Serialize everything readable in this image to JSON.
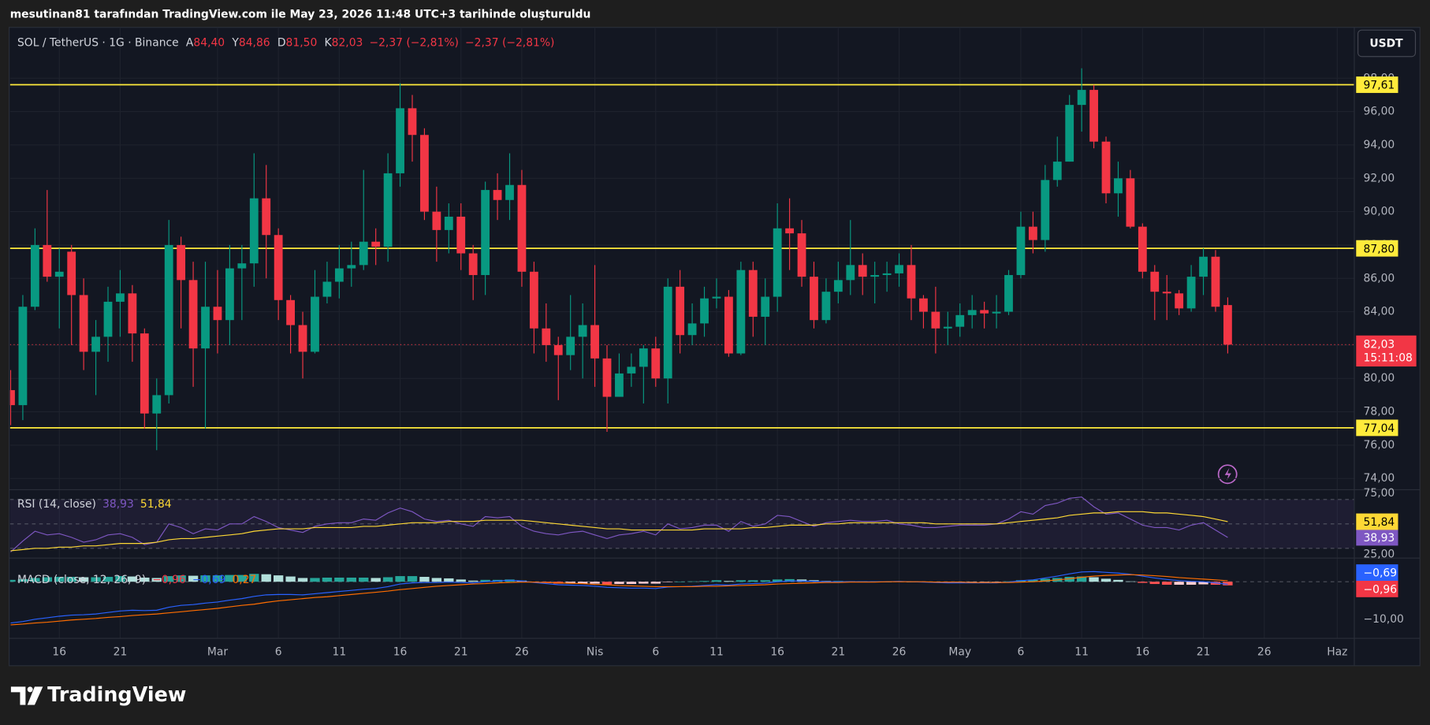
{
  "header": {
    "caption": "mesutinan81 tarafından TradingView.com ile May 23, 2026 11:48 UTC+3 tarihinde oluşturuldu",
    "brand": "TradingView"
  },
  "chart_data": [
    {
      "type": "candlestick",
      "symbol": "SOL / TetherUS · 1G · Binance",
      "ohlc_legend": [
        {
          "key": "A",
          "value": 84.4,
          "label": "84,40"
        },
        {
          "key": "Y",
          "value": 84.86,
          "label": "84,86"
        },
        {
          "key": "D",
          "value": 81.5,
          "label": "81,50"
        },
        {
          "key": "K",
          "value": 82.03,
          "label": "82,03"
        }
      ],
      "change": [
        {
          "value": -2.37,
          "percent": -2.81,
          "label": "−2,37 (−2,81%)"
        },
        {
          "value": -2.37,
          "percent": -2.81,
          "label": "−2,37 (−2,81%)"
        }
      ],
      "currency": "USDT",
      "colors": {
        "up": "#089981",
        "down": "#f23645"
      },
      "open": [
        79.3,
        78.4,
        84.3,
        88.0,
        86.1,
        87.6,
        85.0,
        81.6,
        82.5,
        84.6,
        85.1,
        82.7,
        77.9,
        79.0,
        88.0,
        85.9,
        81.8,
        84.3,
        83.5,
        86.6,
        86.9,
        90.8,
        88.6,
        84.7,
        83.2,
        81.6,
        84.9,
        85.8,
        86.6,
        86.8,
        88.2,
        87.9,
        92.3,
        96.2,
        94.6,
        90.0,
        88.9,
        89.7,
        87.5,
        86.2,
        91.3,
        90.7,
        91.6,
        86.4,
        83.0,
        82.0,
        81.4,
        82.5,
        83.2,
        81.2,
        78.9,
        80.3,
        80.7,
        81.8,
        80.0,
        85.5,
        82.6,
        83.3,
        84.8,
        84.9,
        81.5,
        86.5,
        83.7,
        84.9,
        89.0,
        88.7,
        86.1,
        83.5,
        85.2,
        85.9,
        86.8,
        86.1,
        86.2,
        86.3,
        86.8,
        84.8,
        84.0,
        83.0,
        83.1,
        83.8,
        84.1,
        83.9,
        84.0,
        86.2,
        89.1,
        88.3,
        91.9,
        93.0,
        96.4,
        97.3,
        94.2,
        91.1,
        92.0,
        89.1,
        86.4,
        85.2,
        85.1,
        84.2,
        86.1,
        87.3,
        84.4
      ],
      "high": [
        80.5,
        85,
        89,
        91.3,
        87.8,
        88,
        86,
        83.5,
        85.5,
        86.5,
        85.6,
        83,
        80,
        89.5,
        88.5,
        87,
        87,
        86.5,
        88,
        88,
        93.5,
        92.8,
        89,
        85,
        84,
        86.5,
        87,
        88,
        88.2,
        92.5,
        89,
        93.5,
        97.7,
        97,
        95,
        91.5,
        90.5,
        90.5,
        88,
        91.8,
        92.3,
        93.5,
        92.5,
        87,
        84.5,
        82.5,
        85,
        84.5,
        86.8,
        82,
        81.5,
        81.5,
        82,
        82.5,
        86,
        86.5,
        84.5,
        85.5,
        86,
        85.3,
        87,
        87,
        86,
        90.5,
        90.8,
        89.5,
        87,
        86,
        87,
        89.5,
        87.5,
        87,
        87,
        87.5,
        88,
        85,
        85.5,
        84,
        84.5,
        85,
        84.6,
        85,
        86.5,
        90,
        90,
        92.8,
        94.5,
        97,
        98.6,
        97.6,
        94.5,
        93,
        92.5,
        89.3,
        86.8,
        86.2,
        85.3,
        86.8,
        87.8,
        87.7,
        84.86
      ],
      "low": [
        77.2,
        77.5,
        84.1,
        85.8,
        83,
        82,
        80.5,
        79,
        81,
        82.5,
        81,
        77,
        75.7,
        78.5,
        83,
        79.5,
        77,
        81.5,
        82,
        83.5,
        85.5,
        86,
        83.5,
        81.5,
        80,
        81.5,
        84.5,
        84.8,
        85.5,
        86.5,
        86.8,
        87,
        91.5,
        93,
        89.5,
        87,
        87.5,
        86.5,
        84.7,
        85,
        89.5,
        89.5,
        85.5,
        81.5,
        81,
        78.7,
        80.5,
        80,
        79.5,
        76.8,
        78.9,
        79.5,
        78.5,
        79.5,
        78.5,
        81.5,
        82,
        82.5,
        84.2,
        81.3,
        81.4,
        82.5,
        82,
        84,
        86.5,
        85.5,
        83,
        83.3,
        84.5,
        85,
        85,
        84.5,
        85.2,
        85.5,
        83.5,
        83,
        81.5,
        82,
        82.5,
        83,
        83,
        83,
        83.8,
        86,
        87.5,
        87.6,
        91.5,
        93,
        94.8,
        93.8,
        90.5,
        89.7,
        89,
        86,
        83.5,
        83.5,
        83.8,
        84,
        85,
        84,
        81.5
      ],
      "close": [
        78.4,
        84.3,
        88.0,
        86.1,
        86.4,
        85.0,
        81.6,
        82.5,
        84.6,
        85.1,
        82.7,
        77.9,
        79.0,
        88.0,
        85.9,
        81.8,
        84.3,
        83.5,
        86.6,
        86.9,
        90.8,
        88.6,
        84.7,
        83.2,
        81.6,
        84.9,
        85.8,
        86.6,
        86.8,
        88.2,
        87.9,
        92.3,
        96.2,
        94.6,
        90.0,
        88.9,
        89.7,
        87.5,
        86.2,
        91.3,
        90.7,
        91.6,
        86.4,
        83.0,
        82.0,
        81.4,
        82.5,
        83.2,
        81.2,
        78.9,
        80.3,
        80.7,
        81.8,
        80.0,
        85.5,
        82.6,
        83.3,
        84.8,
        84.9,
        81.5,
        86.5,
        83.7,
        84.9,
        89.0,
        88.7,
        86.1,
        83.5,
        85.2,
        85.9,
        86.8,
        86.1,
        86.2,
        86.3,
        86.8,
        84.8,
        84.0,
        83.0,
        83.1,
        83.8,
        84.1,
        83.9,
        84.0,
        86.2,
        89.1,
        88.3,
        91.9,
        93.0,
        96.4,
        97.3,
        94.2,
        91.1,
        92.0,
        89.1,
        86.4,
        85.2,
        85.1,
        84.2,
        86.1,
        87.3,
        84.3,
        82.03
      ],
      "xlim": [
        -0.05,
        110.4
      ],
      "xticks": [
        {
          "value": 4,
          "label": "16"
        },
        {
          "value": 9,
          "label": "21"
        },
        {
          "value": 17,
          "label": "Mar"
        },
        {
          "value": 22,
          "label": "6"
        },
        {
          "value": 27,
          "label": "11"
        },
        {
          "value": 32,
          "label": "16"
        },
        {
          "value": 37,
          "label": "21"
        },
        {
          "value": 42,
          "label": "26"
        },
        {
          "value": 48,
          "label": "Nis"
        },
        {
          "value": 53,
          "label": "6"
        },
        {
          "value": 58,
          "label": "11"
        },
        {
          "value": 63,
          "label": "16"
        },
        {
          "value": 68,
          "label": "21"
        },
        {
          "value": 73,
          "label": "26"
        },
        {
          "value": 78,
          "label": "May"
        },
        {
          "value": 83,
          "label": "6"
        },
        {
          "value": 88,
          "label": "11"
        },
        {
          "value": 93,
          "label": "16"
        },
        {
          "value": 98,
          "label": "21"
        },
        {
          "value": 103,
          "label": "26"
        },
        {
          "value": 109,
          "label": "Haz"
        }
      ],
      "ylim": [
        73.33,
        101.05
      ],
      "yticks": [
        {
          "value": 74,
          "label": "74,00"
        },
        {
          "value": 76,
          "label": "76,00"
        },
        {
          "value": 78,
          "label": "78,00"
        },
        {
          "value": 80,
          "label": "80,00"
        },
        {
          "value": 82,
          "label": "82,00"
        },
        {
          "value": 84,
          "label": "84,00"
        },
        {
          "value": 86,
          "label": "86,00"
        },
        {
          "value": 88,
          "label": "88,00"
        },
        {
          "value": 90,
          "label": "90,00"
        },
        {
          "value": 92,
          "label": "92,00"
        },
        {
          "value": 94,
          "label": "94,00"
        },
        {
          "value": 96,
          "label": "96,00"
        },
        {
          "value": 98,
          "label": "98,00"
        }
      ],
      "grid": true,
      "levels": [
        {
          "value": 97.61,
          "label": "97,61",
          "color": "#ffeb3b"
        },
        {
          "value": 87.8,
          "label": "87,80",
          "color": "#ffeb3b"
        },
        {
          "value": 77.04,
          "label": "77,04",
          "color": "#ffeb3b"
        }
      ],
      "last_price": {
        "value": 82.03,
        "label": "82,03",
        "countdown": "15:11:08",
        "color": "#f23645"
      }
    },
    {
      "type": "line",
      "title": "RSI (14, close)",
      "ylim": [
        22,
        78
      ],
      "yticks": [
        {
          "value": 75,
          "label": "75,00"
        },
        {
          "value": 25,
          "label": "25,00"
        }
      ],
      "band": [
        30,
        70
      ],
      "midline": 50,
      "band_color": "#7e57c2",
      "series": [
        {
          "color": "#7e57c2",
          "label_text_color": "#ffffff",
          "last_label": "38,93",
          "values": [
            27,
            36,
            44,
            41,
            42,
            39,
            35,
            37,
            41,
            42,
            39,
            33,
            35,
            50,
            47,
            42,
            46,
            45,
            50,
            50,
            56,
            52,
            47,
            45,
            43,
            48,
            50,
            51,
            51,
            54,
            53,
            59,
            63,
            60,
            54,
            52,
            53,
            50,
            48,
            56,
            55,
            56,
            48,
            44,
            42,
            41,
            43,
            44,
            41,
            38,
            41,
            42,
            44,
            41,
            50,
            46,
            47,
            49,
            49,
            44,
            52,
            48,
            50,
            57,
            56,
            52,
            48,
            51,
            52,
            53,
            52,
            52,
            53,
            50,
            49,
            47,
            47,
            48,
            49,
            49,
            49,
            50,
            54,
            60,
            58,
            65,
            67,
            71,
            72,
            64,
            58,
            59,
            54,
            49,
            47,
            47,
            45,
            49,
            51,
            45,
            38.93
          ]
        },
        {
          "color": "#fdd835",
          "label_text_color": "#000000",
          "last_label": "51,84",
          "values": [
            28,
            29,
            30,
            30,
            31,
            31,
            32,
            32,
            33,
            34,
            34,
            34,
            35,
            37,
            38,
            38,
            39,
            40,
            41,
            42,
            44,
            45,
            46,
            46,
            46,
            47,
            47,
            47,
            47,
            48,
            48,
            49,
            50,
            51,
            51,
            51,
            52,
            52,
            52,
            53,
            53,
            53,
            53,
            52,
            51,
            50,
            49,
            48,
            47,
            46,
            46,
            45,
            45,
            45,
            45,
            45,
            45,
            46,
            46,
            46,
            46,
            47,
            47,
            48,
            49,
            49,
            49,
            50,
            50,
            51,
            51,
            51,
            51,
            51,
            51,
            51,
            50,
            50,
            50,
            50,
            50,
            50,
            51,
            52,
            53,
            54,
            55,
            57,
            58,
            59,
            59,
            60,
            60,
            60,
            59,
            59,
            58,
            57,
            56,
            54,
            51.84
          ]
        }
      ]
    },
    {
      "type": "macd",
      "title": "MACD (close, 12, 26, 9)",
      "ylim": [
        -15.1,
        6.3
      ],
      "yticks": [
        {
          "value": -10,
          "label": "−10,00"
        }
      ],
      "hist_colors": [
        "#26a69a",
        "#b2dfdb",
        "#ffcdd2",
        "#ff5252"
      ],
      "histogram": {
        "last_label": "−0,96",
        "color": "#f23645",
        "values": [
          0.5,
          0.7,
          1,
          1.2,
          1.3,
          1.3,
          1.2,
          1.2,
          1.3,
          1.5,
          1.4,
          1.1,
          1,
          1.5,
          1.7,
          1.6,
          1.7,
          1.7,
          1.8,
          1.8,
          2.1,
          2,
          1.7,
          1.4,
          1,
          1,
          1.1,
          1.1,
          1.1,
          1.1,
          1,
          1.2,
          1.5,
          1.5,
          1.3,
          1,
          0.9,
          0.6,
          0.3,
          0.5,
          0.5,
          0.6,
          0.3,
          -0.1,
          -0.3,
          -0.5,
          -0.5,
          -0.5,
          -0.5,
          -0.7,
          -0.6,
          -0.6,
          -0.5,
          -0.5,
          -0.1,
          0,
          0.1,
          0.2,
          0.4,
          0.2,
          0.4,
          0.4,
          0.4,
          0.6,
          0.7,
          0.6,
          0.4,
          0.2,
          0.2,
          0.1,
          0.1,
          0.1,
          0,
          0.1,
          0,
          -0.1,
          -0.1,
          -0.2,
          -0.2,
          -0.1,
          -0.1,
          -0.1,
          0.1,
          0.4,
          0.5,
          0.8,
          1,
          1.3,
          1.4,
          1.2,
          0.8,
          0.5,
          0.1,
          -0.3,
          -0.6,
          -0.8,
          -0.8,
          -0.8,
          -0.7,
          -0.8,
          -0.96
        ]
      },
      "series": [
        {
          "color": "#2962ff",
          "last_label": "−0,69",
          "values": [
            -11,
            -10.6,
            -10,
            -9.6,
            -9.2,
            -8.9,
            -8.8,
            -8.6,
            -8.2,
            -7.8,
            -7.6,
            -7.7,
            -7.6,
            -6.8,
            -6.3,
            -6.1,
            -5.7,
            -5.4,
            -4.9,
            -4.5,
            -3.9,
            -3.5,
            -3.4,
            -3.4,
            -3.5,
            -3.2,
            -2.9,
            -2.6,
            -2.3,
            -2,
            -1.8,
            -1.3,
            -0.6,
            -0.3,
            -0.2,
            -0.2,
            -0.1,
            -0.2,
            -0.3,
            0,
            0.2,
            0.4,
            0.2,
            -0.2,
            -0.5,
            -0.8,
            -0.9,
            -1,
            -1.2,
            -1.5,
            -1.6,
            -1.7,
            -1.7,
            -1.8,
            -1.4,
            -1.3,
            -1.2,
            -1,
            -0.8,
            -0.9,
            -0.6,
            -0.5,
            -0.4,
            0,
            0.2,
            0.2,
            0.1,
            0,
            0,
            0,
            0,
            0,
            0,
            0.1,
            0,
            -0.1,
            -0.2,
            -0.3,
            -0.3,
            -0.3,
            -0.3,
            -0.3,
            -0.1,
            0.3,
            0.5,
            1,
            1.5,
            2.1,
            2.6,
            2.7,
            2.5,
            2.3,
            2,
            1.5,
            1,
            0.6,
            0.3,
            0.1,
            0,
            -0.3,
            -0.69
          ]
        },
        {
          "color": "#ff6d00",
          "last_label": "0,27",
          "values": [
            -11.5,
            -11.3,
            -11,
            -10.8,
            -10.5,
            -10.2,
            -10,
            -9.8,
            -9.5,
            -9.3,
            -9,
            -8.8,
            -8.6,
            -8.3,
            -8,
            -7.7,
            -7.4,
            -7.1,
            -6.7,
            -6.3,
            -6,
            -5.5,
            -5.1,
            -4.8,
            -4.5,
            -4.2,
            -4,
            -3.7,
            -3.4,
            -3.1,
            -2.8,
            -2.5,
            -2.1,
            -1.8,
            -1.5,
            -1.2,
            -1,
            -0.8,
            -0.6,
            -0.5,
            -0.3,
            -0.2,
            -0.1,
            -0.1,
            -0.2,
            -0.3,
            -0.4,
            -0.5,
            -0.7,
            -0.8,
            -1,
            -1.1,
            -1.2,
            -1.3,
            -1.3,
            -1.3,
            -1.3,
            -1.2,
            -1.2,
            -1.1,
            -1,
            -0.9,
            -0.8,
            -0.6,
            -0.5,
            -0.4,
            -0.3,
            -0.2,
            -0.2,
            -0.1,
            -0.1,
            -0.1,
            0,
            0,
            0,
            0,
            -0.1,
            -0.1,
            -0.1,
            -0.2,
            -0.2,
            -0.2,
            -0.2,
            -0.1,
            0,
            0.2,
            0.5,
            0.8,
            1.2,
            1.5,
            1.7,
            1.8,
            1.9,
            1.8,
            1.6,
            1.4,
            1.1,
            0.9,
            0.7,
            0.5,
            0.27
          ]
        }
      ]
    }
  ]
}
